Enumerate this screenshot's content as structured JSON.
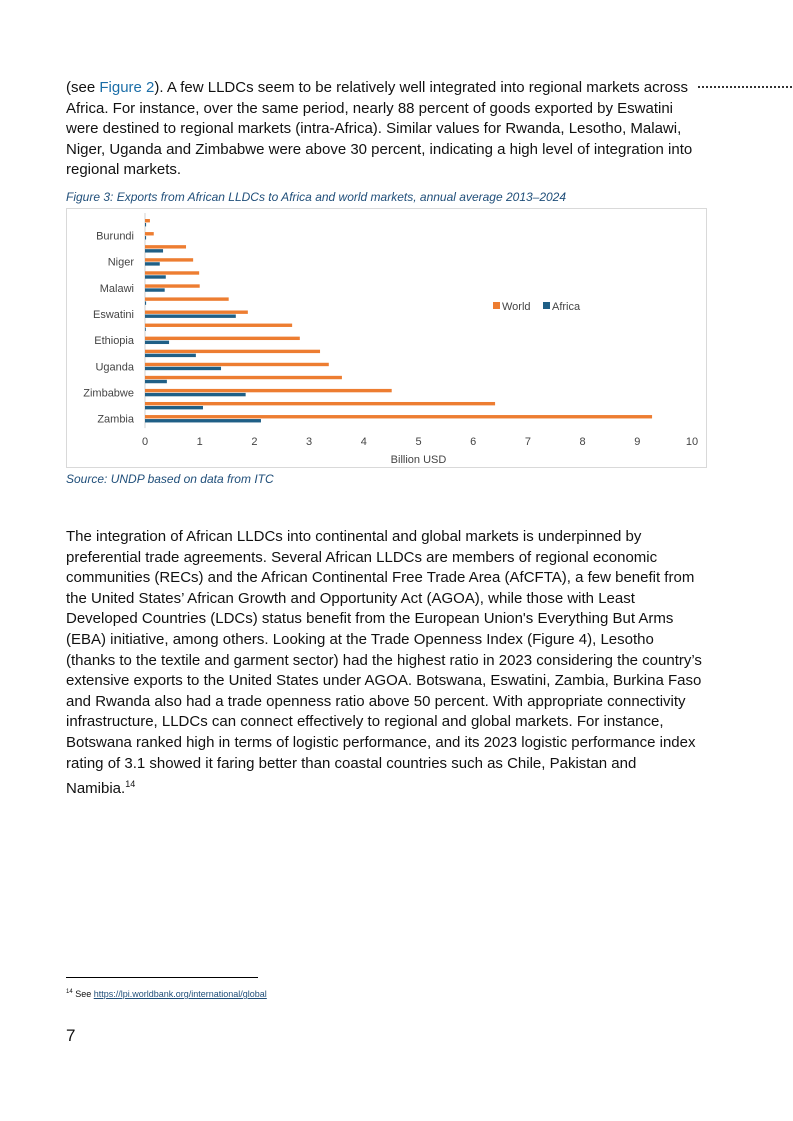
{
  "intro": {
    "prefix": "(see ",
    "link": "Figure 2",
    "rest": "). A few LLDCs seem to be relatively well integrated into regional markets across Africa. For instance, over the same period, nearly 88 percent of goods exported by Eswatini were destined to regional markets (intra-Africa). Similar values for Rwanda, Lesotho, Malawi, Niger, Uganda and Zimbabwe were above 30 percent, indicating a high level of integration into regional markets."
  },
  "figure": {
    "caption": "Figure 3: Exports from African LLDCs to Africa and world markets, annual average 2013–2024",
    "source": "Source: UNDP based on data from ITC"
  },
  "chart_data": {
    "type": "bar",
    "orientation": "horizontal",
    "title": "",
    "xlabel": "Billion USD",
    "ylabel": "",
    "xlim": [
      0,
      10
    ],
    "xticks": [
      "0",
      "1",
      "2",
      "3",
      "4",
      "5",
      "6",
      "7",
      "8",
      "9",
      "10"
    ],
    "grid": false,
    "legend_position": "right",
    "categories": [
      "",
      "Burundi",
      "",
      "Niger",
      "",
      "Malawi",
      "",
      "Eswatini",
      "",
      "Ethiopia",
      "",
      "Uganda",
      "",
      "Zimbabwe",
      "",
      "Zambia"
    ],
    "series": [
      {
        "name": "World",
        "color": "#ED7D31",
        "values": [
          0.09,
          0.16,
          0.75,
          0.88,
          0.99,
          1.0,
          1.53,
          1.88,
          2.69,
          2.83,
          3.2,
          3.36,
          3.6,
          4.51,
          6.4,
          9.27
        ]
      },
      {
        "name": "Africa",
        "color": "#1F5F86",
        "values": [
          0.02,
          0.02,
          0.33,
          0.27,
          0.38,
          0.36,
          0.02,
          1.66,
          0.01,
          0.44,
          0.93,
          1.39,
          0.4,
          1.84,
          1.06,
          2.12
        ]
      }
    ]
  },
  "body": {
    "text": "The integration of African LLDCs into continental and global markets is underpinned by preferential trade agreements. Several African LLDCs are members of regional economic communities (RECs) and the African Continental Free Trade Area (AfCFTA), a few benefit from the United States’ African Growth and Opportunity Act (AGOA), while those with Least Developed Countries (LDCs) status benefit from the European Union's Everything But Arms (EBA) initiative, among others. Looking at the Trade Openness Index (Figure 4), Lesotho (thanks to the textile and garment sector) had the highest ratio in 2023 considering the country’s extensive exports to the United States under AGOA. Botswana, Eswatini, Zambia, Burkina Faso and Rwanda also had a trade openness ratio above 50 percent. With appropriate connectivity infrastructure, LLDCs can connect effectively to regional and global markets. For instance, Botswana ranked high in terms of logistic performance, and its 2023 logistic performance index rating of 3.1 showed it faring better than coastal countries such as Chile, Pakistan and Namibia.",
    "footnote_ref": "14"
  },
  "footnote": {
    "number": "14",
    "prefix": " See ",
    "link": "https://lpi.worldbank.org/international/global"
  },
  "page_number": "7"
}
